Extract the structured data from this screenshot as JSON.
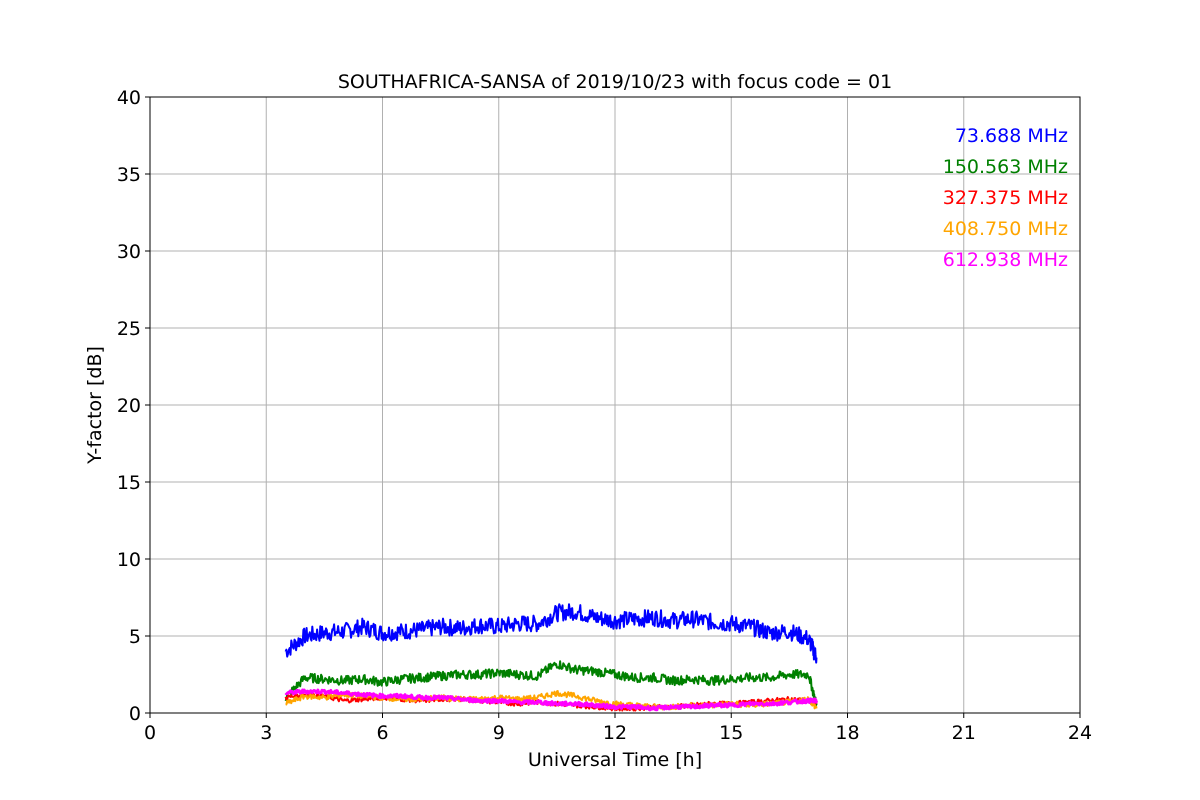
{
  "chart_data": {
    "type": "line",
    "title": "SOUTHAFRICA-SANSA of 2019/10/23 with focus code = 01",
    "xlabel": "Universal Time [h]",
    "ylabel": "Y-factor [dB]",
    "xlim": [
      0,
      24
    ],
    "ylim": [
      0,
      40
    ],
    "xticks": [
      0,
      3,
      6,
      9,
      12,
      15,
      18,
      21,
      24
    ],
    "yticks": [
      0,
      5,
      10,
      15,
      20,
      25,
      30,
      35,
      40
    ],
    "grid": true,
    "legend_placement": "top-right",
    "x": [
      3.5,
      4.0,
      4.5,
      5.0,
      5.5,
      6.0,
      6.5,
      7.0,
      7.5,
      8.0,
      8.5,
      9.0,
      9.5,
      10.0,
      10.5,
      11.0,
      11.5,
      12.0,
      12.5,
      13.0,
      13.5,
      14.0,
      14.5,
      15.0,
      15.5,
      16.0,
      16.5,
      17.0,
      17.2
    ],
    "series": [
      {
        "name": "73.688 MHz",
        "color": "#0000ff",
        "values": [
          4.0,
          5.0,
          5.2,
          5.3,
          5.6,
          5.2,
          5.3,
          5.4,
          5.6,
          5.5,
          5.7,
          5.6,
          5.8,
          5.8,
          6.5,
          6.6,
          6.2,
          6.0,
          6.1,
          6.2,
          6.0,
          6.1,
          5.9,
          5.8,
          5.6,
          5.2,
          5.3,
          4.8,
          3.6
        ]
      },
      {
        "name": "150.563 MHz",
        "color": "#008000",
        "values": [
          1.0,
          2.3,
          2.2,
          2.1,
          2.2,
          2.0,
          2.2,
          2.3,
          2.4,
          2.5,
          2.5,
          2.6,
          2.5,
          2.4,
          3.2,
          2.8,
          2.7,
          2.5,
          2.3,
          2.3,
          2.1,
          2.2,
          2.1,
          2.2,
          2.3,
          2.3,
          2.5,
          2.5,
          0.5
        ]
      },
      {
        "name": "327.375 MHz",
        "color": "#ff0000",
        "values": [
          1.0,
          1.2,
          1.1,
          0.8,
          0.9,
          1.0,
          0.9,
          0.8,
          0.9,
          0.9,
          0.8,
          0.7,
          0.6,
          0.7,
          0.6,
          0.5,
          0.4,
          0.3,
          0.3,
          0.4,
          0.4,
          0.5,
          0.6,
          0.6,
          0.7,
          0.8,
          0.9,
          0.8,
          0.6
        ]
      },
      {
        "name": "408.750 MHz",
        "color": "#ffa500",
        "values": [
          0.6,
          1.1,
          1.0,
          1.2,
          1.1,
          1.0,
          0.9,
          0.9,
          1.0,
          0.9,
          0.9,
          1.0,
          0.9,
          1.0,
          1.3,
          1.1,
          0.8,
          0.6,
          0.5,
          0.4,
          0.4,
          0.5,
          0.5,
          0.6,
          0.5,
          0.6,
          0.7,
          0.9,
          0.3
        ]
      },
      {
        "name": "612.938 MHz",
        "color": "#ff00ff",
        "values": [
          1.3,
          1.4,
          1.4,
          1.3,
          1.2,
          1.1,
          1.1,
          1.0,
          1.0,
          0.9,
          0.8,
          0.8,
          0.7,
          0.7,
          0.6,
          0.6,
          0.5,
          0.4,
          0.4,
          0.3,
          0.4,
          0.4,
          0.5,
          0.5,
          0.6,
          0.6,
          0.7,
          0.8,
          0.8
        ]
      }
    ]
  }
}
